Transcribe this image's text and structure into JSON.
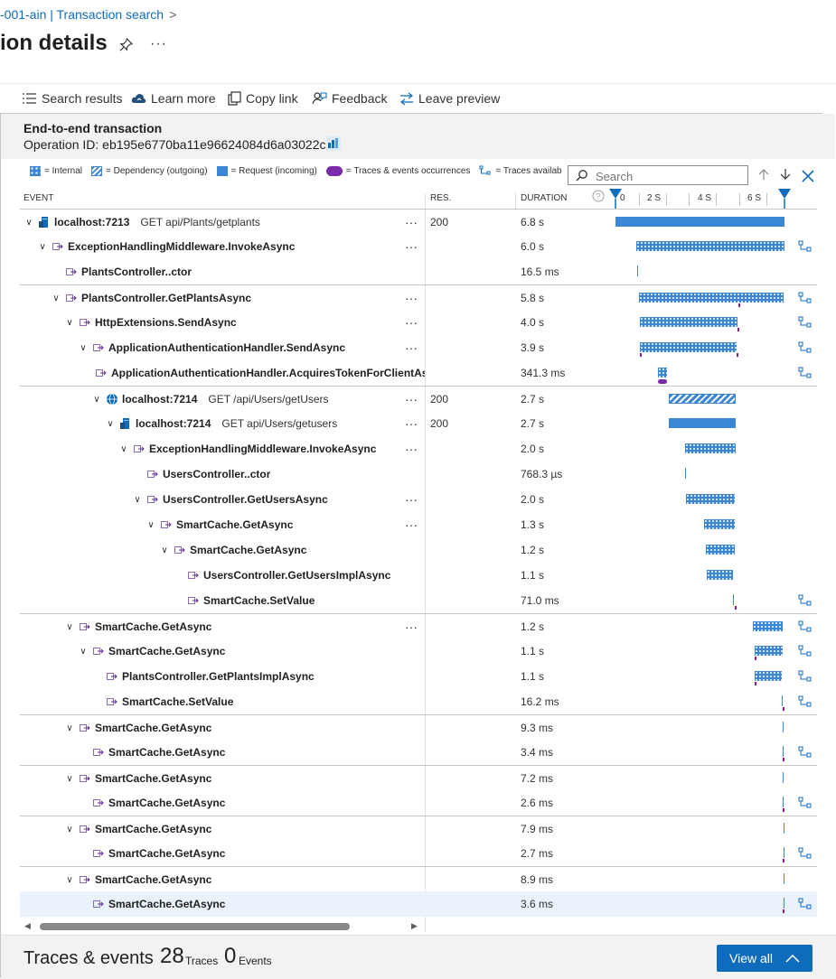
{
  "breadcrumb": {
    "part1": "-001-ain | Transaction search",
    "sep": ">"
  },
  "page": {
    "title": "ion details",
    "more": "···"
  },
  "toolbar": {
    "search_results": "Search results",
    "learn_more": "Learn more",
    "copy_link": "Copy link",
    "feedback": "Feedback",
    "leave_preview": "Leave preview"
  },
  "transaction": {
    "title": "End-to-end transaction",
    "operation_id": "Operation ID: eb195e6770ba11e96624084d6a03022c"
  },
  "legend": {
    "internal": "= Internal",
    "dependency": "= Dependency (outgoing)",
    "request": "= Request (incoming)",
    "traces": "= Traces & events occurrences",
    "traces_available": "= Traces availab"
  },
  "search": {
    "placeholder": "Search"
  },
  "columns": {
    "event": "EVENT",
    "res": "RES.",
    "duration": "DURATION"
  },
  "timeline": {
    "ticks": [
      "0",
      "2 S",
      "4 S",
      "6 S"
    ]
  },
  "colors": {
    "accent": "#0f6cbd",
    "bar": "#3c87d4",
    "trace": "#8b1e8b"
  },
  "rows": [
    {
      "name": "localhost:7213",
      "request": "GET api/Plants/getplants",
      "res": "200",
      "duration": "6.8 s",
      "depth": 0,
      "icon": "server-icon",
      "expanded": true,
      "menu": true
    },
    {
      "name": "ExceptionHandlingMiddleware.InvokeAsync",
      "request": "",
      "res": "",
      "duration": "6.0 s",
      "depth": 1,
      "icon": "function-icon",
      "expanded": true,
      "menu": true
    },
    {
      "name": "PlantsController..ctor",
      "request": "",
      "res": "",
      "duration": "16.5 ms",
      "depth": 2,
      "icon": "function-icon",
      "expanded": false,
      "menu": false
    },
    {
      "name": "PlantsController.GetPlantsAsync",
      "request": "",
      "res": "",
      "duration": "5.8 s",
      "depth": 2,
      "icon": "function-icon",
      "expanded": true,
      "menu": true
    },
    {
      "name": "HttpExtensions.SendAsync",
      "request": "",
      "res": "",
      "duration": "4.0 s",
      "depth": 3,
      "icon": "function-icon",
      "expanded": true,
      "menu": true
    },
    {
      "name": "ApplicationAuthenticationHandler.SendAsync",
      "request": "",
      "res": "",
      "duration": "3.9 s",
      "depth": 4,
      "icon": "function-icon",
      "expanded": true,
      "menu": true
    },
    {
      "name": "ApplicationAuthenticationHandler.AcquiresTokenForClientAsync",
      "request": "",
      "res": "",
      "duration": "341.3 ms",
      "depth": 5,
      "icon": "function-icon",
      "expanded": false,
      "menu": false
    },
    {
      "name": "localhost:7214",
      "request": "GET /api/Users/getUsers",
      "res": "200",
      "duration": "2.7 s",
      "depth": 5,
      "icon": "globe-icon",
      "expanded": true,
      "menu": true
    },
    {
      "name": "localhost:7214",
      "request": "GET api/Users/getusers",
      "res": "200",
      "duration": "2.7 s",
      "depth": 6,
      "icon": "server-icon",
      "expanded": true,
      "menu": true
    },
    {
      "name": "ExceptionHandlingMiddleware.InvokeAsync",
      "request": "",
      "res": "",
      "duration": "2.0 s",
      "depth": 7,
      "icon": "function-icon",
      "expanded": true,
      "menu": true
    },
    {
      "name": "UsersController..ctor",
      "request": "",
      "res": "",
      "duration": "768.3 µs",
      "depth": 8,
      "icon": "function-icon",
      "expanded": false,
      "menu": false
    },
    {
      "name": "UsersController.GetUsersAsync",
      "request": "",
      "res": "",
      "duration": "2.0 s",
      "depth": 8,
      "icon": "function-icon",
      "expanded": true,
      "menu": true
    },
    {
      "name": "SmartCache.GetAsync",
      "request": "",
      "res": "",
      "duration": "1.3 s",
      "depth": 9,
      "icon": "function-icon",
      "expanded": true,
      "menu": true
    },
    {
      "name": "SmartCache.GetAsync",
      "request": "",
      "res": "",
      "duration": "1.2 s",
      "depth": 10,
      "icon": "function-icon",
      "expanded": true,
      "menu": false
    },
    {
      "name": "UsersController.GetUsersImplAsync",
      "request": "",
      "res": "",
      "duration": "1.1 s",
      "depth": 11,
      "icon": "function-icon",
      "expanded": false,
      "menu": false
    },
    {
      "name": "SmartCache.SetValue",
      "request": "",
      "res": "",
      "duration": "71.0 ms",
      "depth": 11,
      "icon": "function-icon",
      "expanded": false,
      "menu": false
    },
    {
      "name": "SmartCache.GetAsync",
      "request": "",
      "res": "",
      "duration": "1.2 s",
      "depth": 3,
      "icon": "function-icon",
      "expanded": true,
      "menu": true
    },
    {
      "name": "SmartCache.GetAsync",
      "request": "",
      "res": "",
      "duration": "1.1 s",
      "depth": 4,
      "icon": "function-icon",
      "expanded": true,
      "menu": false
    },
    {
      "name": "PlantsController.GetPlantsImplAsync",
      "request": "",
      "res": "",
      "duration": "1.1 s",
      "depth": 5,
      "icon": "function-icon",
      "expanded": false,
      "menu": false
    },
    {
      "name": "SmartCache.SetValue",
      "request": "",
      "res": "",
      "duration": "16.2 ms",
      "depth": 5,
      "icon": "function-icon",
      "expanded": false,
      "menu": false
    },
    {
      "name": "SmartCache.GetAsync",
      "request": "",
      "res": "",
      "duration": "9.3 ms",
      "depth": 3,
      "icon": "function-icon",
      "expanded": true,
      "menu": false
    },
    {
      "name": "SmartCache.GetAsync",
      "request": "",
      "res": "",
      "duration": "3.4 ms",
      "depth": 4,
      "icon": "function-icon",
      "expanded": false,
      "menu": false
    },
    {
      "name": "SmartCache.GetAsync",
      "request": "",
      "res": "",
      "duration": "7.2 ms",
      "depth": 3,
      "icon": "function-icon",
      "expanded": true,
      "menu": false
    },
    {
      "name": "SmartCache.GetAsync",
      "request": "",
      "res": "",
      "duration": "2.6 ms",
      "depth": 4,
      "icon": "function-icon",
      "expanded": false,
      "menu": false
    },
    {
      "name": "SmartCache.GetAsync",
      "request": "",
      "res": "",
      "duration": "7.9 ms",
      "depth": 3,
      "icon": "function-icon",
      "expanded": true,
      "menu": false
    },
    {
      "name": "SmartCache.GetAsync",
      "request": "",
      "res": "",
      "duration": "2.7 ms",
      "depth": 4,
      "icon": "function-icon",
      "expanded": false,
      "menu": false
    },
    {
      "name": "SmartCache.GetAsync",
      "request": "",
      "res": "",
      "duration": "8.9 ms",
      "depth": 3,
      "icon": "function-icon",
      "expanded": true,
      "menu": false
    },
    {
      "name": "SmartCache.GetAsync",
      "request": "",
      "res": "",
      "duration": "3.6 ms",
      "depth": 4,
      "icon": "function-icon",
      "expanded": false,
      "menu": false
    }
  ],
  "traces_events": {
    "title": "Traces & events",
    "traces_count": "28",
    "traces_label": "Traces",
    "events_count": "0",
    "events_label": "Events",
    "view_all": "View all"
  }
}
